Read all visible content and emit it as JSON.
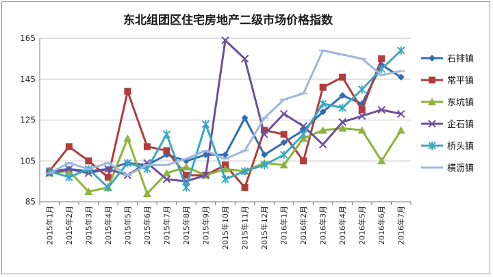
{
  "chart_data": {
    "type": "line",
    "title": "东北组团区住宅房地产二级市场价格指数",
    "xlabel": "",
    "ylabel": "",
    "ylim": [
      85,
      165
    ],
    "yticks": [
      85,
      105,
      125,
      145,
      165
    ],
    "grid": "horizontal",
    "legend": "right",
    "categories": [
      "2015年1月",
      "2015年2月",
      "2015年3月",
      "2015年4月",
      "2015年5月",
      "2015年6月",
      "2015年7月",
      "2015年8月",
      "2015年9月",
      "2015年10月",
      "2015年11月",
      "2015年12月",
      "2016年1月",
      "2016年2月",
      "2016年3月",
      "2016年4月",
      "2016年5月",
      "2016年6月",
      "2016年7月"
    ],
    "series": [
      {
        "name": "石排镇",
        "color": "#2f6db5",
        "marker": "diamond",
        "values": [
          100,
          101,
          100,
          101,
          104,
          103,
          108,
          105,
          108,
          108,
          126,
          108,
          114,
          120,
          129,
          137,
          133,
          152,
          146
        ]
      },
      {
        "name": "常平镇",
        "color": "#b23b3b",
        "marker": "square",
        "values": [
          100,
          112,
          105,
          97,
          139,
          112,
          110,
          98,
          98,
          103,
          92,
          120,
          118,
          105,
          141,
          146,
          130,
          155,
          null
        ]
      },
      {
        "name": "东坑镇",
        "color": "#8db33a",
        "marker": "triangle",
        "values": [
          99,
          100,
          90,
          92,
          116,
          89,
          99,
          102,
          98,
          101,
          100,
          104,
          103,
          116,
          120,
          121,
          120,
          105,
          120
        ]
      },
      {
        "name": "企石镇",
        "color": "#6b4f9c",
        "marker": "x",
        "values": [
          99,
          101,
          99,
          101,
          98,
          104,
          96,
          95,
          98,
          164,
          155,
          118,
          128,
          122,
          113,
          124,
          127,
          130,
          128
        ]
      },
      {
        "name": "桥头镇",
        "color": "#38a8c0",
        "marker": "star",
        "values": [
          100,
          97,
          101,
          92,
          104,
          101,
          118,
          92,
          123,
          96,
          100,
          103,
          108,
          118,
          133,
          131,
          140,
          150,
          159
        ]
      },
      {
        "name": "横沥镇",
        "color": "#9fb6dc",
        "marker": "bar",
        "values": [
          99,
          104,
          101,
          104,
          98,
          103,
          103,
          106,
          110,
          106,
          110,
          126,
          135,
          138,
          159,
          157,
          155,
          147,
          149
        ]
      }
    ]
  }
}
